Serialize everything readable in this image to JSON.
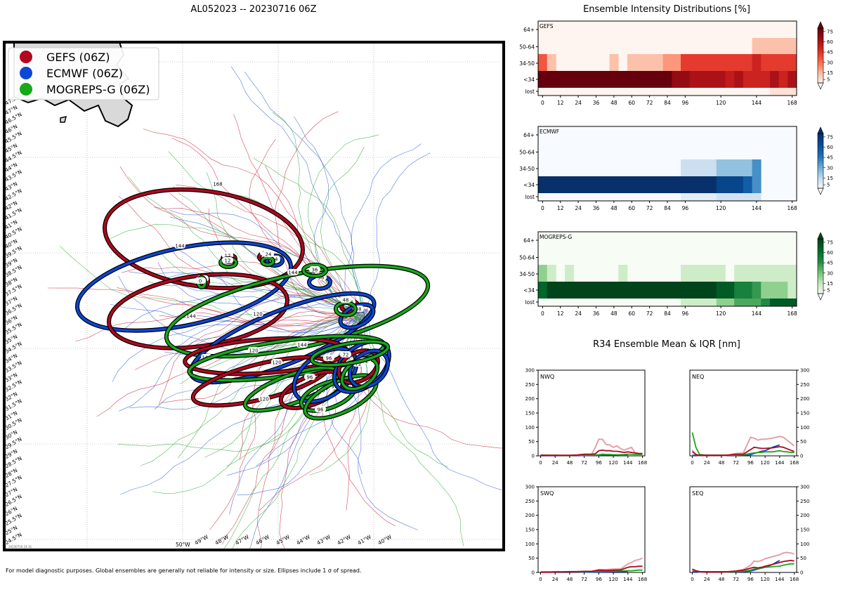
{
  "map_title": "AL052023 -- 20230716 06Z",
  "heatmap_title": "Ensemble Intensity Distributions [%]",
  "r34_title": "R34 Ensemble Mean & IQR [nm]",
  "footer": "For model diagnostic purposes. Global ensembles are generally not reliable for intensity or size. Ellipses include 1 σ of spread.",
  "stamp": "20230716 14:31",
  "legend": [
    {
      "name": "GEFS (06Z)",
      "color": "#b2071e"
    },
    {
      "name": "ECMWF (06Z)",
      "color": "#0b46d6"
    },
    {
      "name": "MOGREPS-G (06Z)",
      "color": "#17a81b"
    }
  ],
  "map_lat_labels": [
    "47.5°N",
    "47°N",
    "46.5°N",
    "46°N",
    "45.5°N",
    "45°N",
    "44.5°N",
    "44°N",
    "43.5°N",
    "43°N",
    "42.5°N",
    "42°N",
    "41.5°N",
    "41°N",
    "40.5°N",
    "40°N",
    "39.5°N",
    "39°N",
    "38.5°N",
    "38°N",
    "37.5°N",
    "37°N",
    "36.5°N",
    "36°N",
    "35.5°N",
    "35°N",
    "34.5°N",
    "34°N",
    "33.5°N",
    "33°N",
    "32.5°N",
    "32°N",
    "31.5°N",
    "31°N",
    "30.5°N",
    "30°N",
    "29.5°N",
    "29°N",
    "28.5°N",
    "28°N",
    "27.5°N",
    "27°N",
    "26.5°N",
    "26°N",
    "25.5°N",
    "25°N",
    "24.5°N"
  ],
  "map_lon_labels": [
    "50°W",
    "49°W",
    "48°W",
    "47°W",
    "46°W",
    "45°W",
    "44°W",
    "43°W",
    "42°W",
    "41°W",
    "40°W"
  ],
  "chart_data": [
    {
      "type": "heatmap",
      "panel": "GEFS",
      "rows": [
        "64+",
        "50-64",
        "34-50",
        "<34",
        "lost"
      ],
      "x_ticks": [
        0,
        12,
        24,
        36,
        48,
        60,
        72,
        84,
        96,
        120,
        144,
        168
      ],
      "colorbar_ticks": [
        5,
        15,
        30,
        45,
        60,
        75
      ],
      "colormap": "Reds",
      "columns": [
        0,
        6,
        12,
        18,
        24,
        30,
        36,
        42,
        48,
        54,
        60,
        66,
        72,
        78,
        84,
        90,
        96,
        102,
        108,
        114,
        120,
        126,
        132,
        138,
        144,
        150,
        156,
        162,
        168
      ],
      "values": [
        [
          0,
          0,
          0,
          0,
          0,
          0,
          0,
          0,
          0,
          0,
          0,
          0,
          0,
          0,
          0,
          0,
          0,
          0,
          0,
          0,
          0,
          0,
          0,
          0,
          0,
          0,
          0,
          0,
          0
        ],
        [
          0,
          0,
          0,
          0,
          0,
          0,
          0,
          0,
          0,
          0,
          0,
          0,
          0,
          0,
          0,
          0,
          0,
          0,
          0,
          0,
          0,
          0,
          0,
          0,
          16,
          16,
          16,
          16,
          16
        ],
        [
          42,
          16,
          0,
          0,
          0,
          0,
          0,
          0,
          16,
          0,
          16,
          16,
          16,
          16,
          26,
          26,
          50,
          50,
          50,
          50,
          50,
          50,
          50,
          50,
          60,
          50,
          50,
          50,
          50
        ],
        [
          90,
          90,
          90,
          90,
          90,
          90,
          90,
          90,
          90,
          90,
          90,
          90,
          90,
          90,
          90,
          77,
          77,
          70,
          70,
          70,
          70,
          64,
          70,
          60,
          60,
          60,
          70,
          60,
          70
        ],
        [
          0,
          0,
          0,
          0,
          0,
          0,
          0,
          0,
          0,
          0,
          0,
          0,
          0,
          0,
          0,
          0,
          0,
          0,
          0,
          0,
          0,
          0,
          0,
          0,
          0,
          0,
          6,
          6,
          6
        ]
      ]
    },
    {
      "type": "heatmap",
      "panel": "ECMWF",
      "rows": [
        "64+",
        "50-64",
        "34-50",
        "<34",
        "lost"
      ],
      "x_ticks": [
        0,
        12,
        24,
        36,
        48,
        60,
        72,
        84,
        96,
        120,
        144,
        168
      ],
      "colorbar_ticks": [
        5,
        15,
        30,
        45,
        60,
        75
      ],
      "colormap": "Blues",
      "columns": [
        0,
        6,
        12,
        18,
        24,
        30,
        36,
        42,
        48,
        54,
        60,
        66,
        72,
        78,
        84,
        90,
        96,
        102,
        108,
        114,
        120,
        126,
        132,
        138,
        144
      ],
      "values": [
        [
          0,
          0,
          0,
          0,
          0,
          0,
          0,
          0,
          0,
          0,
          0,
          0,
          0,
          0,
          0,
          0,
          0,
          0,
          0,
          0,
          0,
          0,
          0,
          0,
          0
        ],
        [
          0,
          0,
          0,
          0,
          0,
          0,
          0,
          0,
          0,
          0,
          0,
          0,
          0,
          0,
          0,
          0,
          0,
          0,
          0,
          0,
          0,
          0,
          0,
          0,
          0
        ],
        [
          0,
          0,
          0,
          0,
          0,
          0,
          0,
          0,
          0,
          0,
          0,
          0,
          0,
          0,
          0,
          0,
          16,
          16,
          16,
          16,
          28,
          28,
          28,
          28,
          45
        ],
        [
          95,
          95,
          95,
          95,
          95,
          95,
          95,
          95,
          95,
          95,
          95,
          95,
          95,
          95,
          95,
          95,
          95,
          95,
          95,
          95,
          78,
          78,
          78,
          65,
          45
        ],
        [
          0,
          0,
          0,
          0,
          0,
          0,
          0,
          0,
          0,
          0,
          0,
          0,
          0,
          0,
          0,
          0,
          8,
          8,
          8,
          8,
          14,
          14,
          14,
          14,
          14
        ]
      ]
    },
    {
      "type": "heatmap",
      "panel": "MOGREPS-G",
      "rows": [
        "64+",
        "50-64",
        "34-50",
        "<34",
        "lost"
      ],
      "x_ticks": [
        0,
        12,
        24,
        36,
        48,
        60,
        72,
        84,
        96,
        120,
        144,
        168
      ],
      "colorbar_ticks": [
        5,
        15,
        30,
        45,
        60,
        75
      ],
      "colormap": "Greens",
      "columns": [
        0,
        6,
        12,
        18,
        24,
        30,
        36,
        42,
        48,
        54,
        60,
        66,
        72,
        78,
        84,
        90,
        96,
        102,
        108,
        114,
        120,
        126,
        132,
        138,
        144,
        150,
        156,
        162,
        168
      ],
      "values": [
        [
          0,
          0,
          0,
          0,
          0,
          0,
          0,
          0,
          0,
          0,
          0,
          0,
          0,
          0,
          0,
          0,
          0,
          0,
          0,
          0,
          0,
          0,
          0,
          0,
          0,
          0,
          0,
          0,
          0
        ],
        [
          0,
          0,
          0,
          0,
          0,
          0,
          0,
          0,
          0,
          0,
          0,
          0,
          0,
          0,
          0,
          0,
          0,
          0,
          0,
          0,
          0,
          0,
          0,
          0,
          0,
          0,
          0,
          0,
          0
        ],
        [
          30,
          15,
          0,
          15,
          0,
          0,
          0,
          0,
          0,
          15,
          0,
          0,
          0,
          0,
          0,
          0,
          15,
          15,
          15,
          15,
          15,
          0,
          15,
          15,
          15,
          15,
          15,
          15,
          15
        ],
        [
          75,
          95,
          95,
          95,
          95,
          95,
          95,
          95,
          95,
          95,
          95,
          95,
          95,
          95,
          95,
          95,
          95,
          95,
          95,
          95,
          80,
          80,
          60,
          60,
          50,
          30,
          30,
          30,
          15
        ],
        [
          0,
          0,
          0,
          0,
          0,
          0,
          0,
          0,
          0,
          0,
          0,
          0,
          0,
          0,
          0,
          0,
          15,
          15,
          15,
          15,
          30,
          30,
          45,
          45,
          45,
          55,
          80,
          80,
          80
        ]
      ]
    },
    {
      "type": "line",
      "panel": "NWQ",
      "x_ticks": [
        0,
        24,
        48,
        72,
        96,
        120,
        144,
        168
      ],
      "y_ticks": [
        0,
        50,
        100,
        150,
        200,
        250,
        300
      ],
      "ylim": [
        0,
        300
      ],
      "x": [
        0,
        12,
        24,
        36,
        48,
        60,
        72,
        84,
        90,
        96,
        102,
        108,
        114,
        120,
        126,
        132,
        138,
        144,
        150,
        156,
        162,
        168
      ],
      "series": [
        {
          "name": "GEFS mean",
          "color": "#b2071e",
          "values": [
            2,
            2,
            2,
            2,
            2,
            3,
            6,
            6,
            7,
            18,
            20,
            18,
            18,
            16,
            16,
            14,
            12,
            14,
            12,
            10,
            8,
            8
          ]
        },
        {
          "name": "GEFS IQR",
          "color": "#e6a0a8",
          "values": [
            0,
            0,
            0,
            0,
            0,
            0,
            3,
            5,
            28,
            58,
            58,
            40,
            38,
            30,
            35,
            25,
            20,
            25,
            30,
            10,
            6,
            6
          ]
        },
        {
          "name": "ECMWF mean",
          "color": "#0b46d6",
          "values": [
            1,
            1,
            1,
            1,
            1,
            1,
            1,
            2,
            2,
            2,
            3,
            3,
            3,
            3,
            4,
            4,
            4,
            4,
            null,
            null,
            null,
            null
          ]
        },
        {
          "name": "MOGREPS-G mean",
          "color": "#17a81b",
          "values": [
            3,
            2,
            2,
            1,
            1,
            2,
            3,
            3,
            3,
            4,
            6,
            5,
            5,
            4,
            4,
            4,
            5,
            6,
            6,
            5,
            5,
            5
          ]
        }
      ]
    },
    {
      "type": "line",
      "panel": "NEQ",
      "x_ticks": [
        0,
        24,
        48,
        72,
        96,
        120,
        144,
        168
      ],
      "y_ticks": [
        0,
        50,
        100,
        150,
        200,
        250,
        300
      ],
      "ylim": [
        0,
        300
      ],
      "x": [
        0,
        6,
        12,
        24,
        36,
        48,
        60,
        72,
        84,
        96,
        102,
        108,
        114,
        120,
        132,
        144,
        150,
        156,
        162,
        168
      ],
      "series": [
        {
          "name": "GEFS mean",
          "color": "#b2071e",
          "values": [
            15,
            5,
            2,
            2,
            2,
            2,
            3,
            6,
            6,
            22,
            30,
            28,
            26,
            26,
            28,
            32,
            30,
            25,
            20,
            15
          ]
        },
        {
          "name": "GEFS IQR",
          "color": "#e6a0a8",
          "values": [
            20,
            5,
            0,
            0,
            0,
            0,
            3,
            8,
            10,
            65,
            62,
            55,
            58,
            58,
            62,
            68,
            65,
            55,
            45,
            35
          ]
        },
        {
          "name": "ECMWF mean",
          "color": "#0b46d6",
          "values": [
            2,
            2,
            2,
            2,
            2,
            2,
            2,
            2,
            3,
            4,
            8,
            12,
            16,
            18,
            30,
            38,
            null,
            null,
            null,
            null
          ]
        },
        {
          "name": "MOGREPS-G mean",
          "color": "#17a81b",
          "values": [
            82,
            30,
            5,
            2,
            2,
            2,
            2,
            3,
            4,
            8,
            10,
            12,
            12,
            14,
            14,
            18,
            15,
            14,
            12,
            12
          ]
        }
      ]
    },
    {
      "type": "line",
      "panel": "SWQ",
      "x_ticks": [
        0,
        24,
        48,
        72,
        96,
        120,
        144,
        168
      ],
      "y_ticks": [
        0,
        50,
        100,
        150,
        200,
        250,
        300
      ],
      "ylim": [
        0,
        300
      ],
      "x": [
        0,
        12,
        24,
        36,
        48,
        60,
        72,
        84,
        96,
        108,
        120,
        132,
        144,
        150,
        156,
        162,
        168
      ],
      "series": [
        {
          "name": "GEFS mean",
          "color": "#b2071e",
          "values": [
            1,
            1,
            2,
            2,
            3,
            3,
            4,
            4,
            8,
            7,
            8,
            9,
            18,
            20,
            20,
            22,
            22
          ]
        },
        {
          "name": "GEFS IQR",
          "color": "#e6a0a8",
          "values": [
            0,
            0,
            0,
            0,
            0,
            0,
            2,
            3,
            10,
            10,
            12,
            12,
            30,
            35,
            42,
            45,
            50
          ]
        },
        {
          "name": "ECMWF mean",
          "color": "#0b46d6",
          "values": [
            1,
            1,
            1,
            1,
            1,
            1,
            1,
            1,
            2,
            2,
            3,
            3,
            4,
            null,
            null,
            null,
            null
          ]
        },
        {
          "name": "MOGREPS-G mean",
          "color": "#17a81b",
          "values": [
            2,
            2,
            2,
            2,
            2,
            2,
            3,
            4,
            4,
            5,
            5,
            6,
            6,
            6,
            7,
            8,
            8
          ]
        }
      ]
    },
    {
      "type": "line",
      "panel": "SEQ",
      "x_ticks": [
        0,
        24,
        48,
        72,
        96,
        120,
        144,
        168
      ],
      "y_ticks": [
        0,
        50,
        100,
        150,
        200,
        250,
        300
      ],
      "ylim": [
        0,
        300
      ],
      "x": [
        0,
        6,
        12,
        24,
        36,
        48,
        60,
        72,
        84,
        96,
        102,
        108,
        114,
        120,
        132,
        144,
        150,
        156,
        162,
        168
      ],
      "series": [
        {
          "name": "GEFS mean",
          "color": "#b2071e",
          "values": [
            10,
            6,
            3,
            2,
            2,
            2,
            3,
            5,
            8,
            15,
            18,
            16,
            18,
            22,
            28,
            35,
            38,
            40,
            42,
            40
          ]
        },
        {
          "name": "GEFS IQR",
          "color": "#e6a0a8",
          "values": [
            5,
            3,
            1,
            0,
            0,
            0,
            2,
            5,
            10,
            25,
            40,
            38,
            42,
            48,
            55,
            62,
            68,
            70,
            68,
            65
          ]
        },
        {
          "name": "ECMWF mean",
          "color": "#0b46d6",
          "values": [
            2,
            2,
            2,
            2,
            2,
            2,
            2,
            2,
            3,
            5,
            8,
            12,
            15,
            18,
            28,
            42,
            null,
            null,
            null,
            null
          ]
        },
        {
          "name": "MOGREPS-G mean",
          "color": "#17a81b",
          "values": [
            12,
            6,
            3,
            2,
            2,
            2,
            2,
            3,
            4,
            8,
            12,
            14,
            16,
            18,
            20,
            22,
            25,
            28,
            30,
            30
          ]
        }
      ]
    }
  ]
}
